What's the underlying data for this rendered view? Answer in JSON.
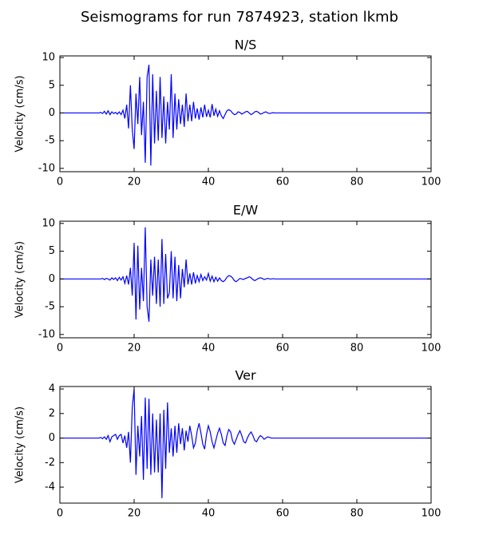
{
  "title": "Seismograms for run 7874923, station lkmb",
  "chart_data": [
    {
      "type": "line",
      "title": "N/S",
      "ylabel": "Velocity (cm/s)",
      "xlim": [
        0,
        100
      ],
      "xticks": [
        0,
        20,
        40,
        60,
        80,
        100
      ],
      "ylim": [
        -10.6,
        10.3
      ],
      "yticks": [
        -10,
        -5,
        0,
        5,
        10
      ],
      "x": [
        0,
        10,
        10.5,
        11,
        11.5,
        12,
        12.5,
        13,
        13.5,
        14,
        14.5,
        15,
        15.5,
        16,
        16.5,
        17,
        17.5,
        18,
        18.5,
        19,
        19.5,
        20,
        20.5,
        21,
        21.5,
        22,
        22.5,
        23,
        23.5,
        24,
        24.5,
        25,
        25.5,
        26,
        26.5,
        27,
        27.5,
        28,
        28.5,
        29,
        29.5,
        30,
        30.5,
        31,
        31.5,
        32,
        32.5,
        33,
        33.5,
        34,
        34.5,
        35,
        35.5,
        36,
        36.5,
        37,
        37.5,
        38,
        38.5,
        39,
        39.5,
        40,
        40.5,
        41,
        41.5,
        42,
        42.5,
        43,
        43.5,
        44,
        44.5,
        45,
        45.5,
        46,
        46.5,
        47,
        47.5,
        48,
        48.5,
        49,
        49.5,
        50,
        50.5,
        51,
        51.5,
        52,
        52.5,
        53,
        53.5,
        54,
        54.5,
        55,
        55.5,
        56,
        56.5,
        57,
        57.5,
        58,
        58.5,
        59,
        59.5,
        60,
        100
      ],
      "series": [
        {
          "color": "#0000ff",
          "values": [
            0,
            0,
            0,
            0.1,
            -0.1,
            0.3,
            -0.2,
            0.4,
            -0.3,
            0.2,
            -0.1,
            0.1,
            -0.2,
            0.2,
            -0.3,
            0.5,
            -1,
            1.5,
            -2.8,
            5,
            -3,
            -6.5,
            3.5,
            -2,
            6.5,
            -4,
            2,
            -9,
            6.5,
            8.7,
            -9.5,
            7,
            -5.5,
            4,
            -5,
            6.5,
            -4.5,
            3,
            -5.5,
            2,
            -3,
            7,
            -4.5,
            3.5,
            -3,
            2.5,
            -2,
            1.5,
            -2.5,
            3.5,
            -1.5,
            1.5,
            -1.5,
            2,
            -1,
            0.8,
            -1.2,
            1,
            -0.8,
            1.5,
            -0.7,
            0.5,
            -0.8,
            1.6,
            -0.5,
            0.7,
            -0.6,
            0.4,
            -0.5,
            -1,
            -0.3,
            0.4,
            0.6,
            0.4,
            0,
            -0.3,
            -0.2,
            0.2,
            0.1,
            -0.2,
            0,
            0.2,
            0.3,
            0,
            -0.3,
            -0.1,
            0.2,
            0.3,
            0.1,
            -0.2,
            -0.1,
            0.1,
            0.2,
            0,
            -0.1,
            0,
            0.05,
            0,
            0,
            0,
            0,
            0,
            0
          ]
        }
      ]
    },
    {
      "type": "line",
      "title": "E/W",
      "ylabel": "Velocity (cm/s)",
      "xlim": [
        0,
        100
      ],
      "xticks": [
        0,
        20,
        40,
        60,
        80,
        100
      ],
      "ylim": [
        -10.6,
        10.4
      ],
      "yticks": [
        -10,
        -5,
        0,
        5,
        10
      ],
      "x": [
        0,
        10,
        10.5,
        11,
        11.5,
        12,
        12.5,
        13,
        13.5,
        14,
        14.5,
        15,
        15.5,
        16,
        16.5,
        17,
        17.5,
        18,
        18.5,
        19,
        19.5,
        20,
        20.5,
        21,
        21.5,
        22,
        22.5,
        23,
        23.5,
        24,
        24.5,
        25,
        25.5,
        26,
        26.5,
        27,
        27.5,
        28,
        28.5,
        29,
        29.5,
        30,
        30.5,
        31,
        31.5,
        32,
        32.5,
        33,
        33.5,
        34,
        34.5,
        35,
        35.5,
        36,
        36.5,
        37,
        37.5,
        38,
        38.5,
        39,
        39.5,
        40,
        40.5,
        41,
        41.5,
        42,
        42.5,
        43,
        43.5,
        44,
        44.5,
        45,
        45.5,
        46,
        46.5,
        47,
        47.5,
        48,
        48.5,
        49,
        49.5,
        50,
        50.5,
        51,
        51.5,
        52,
        52.5,
        53,
        53.5,
        54,
        54.5,
        55,
        55.5,
        56,
        56.5,
        57,
        57.5,
        58,
        58.5,
        59,
        59.5,
        60,
        100
      ],
      "series": [
        {
          "color": "#0000ff",
          "values": [
            0,
            0,
            0,
            0,
            0.1,
            -0.1,
            0.1,
            0,
            -0.2,
            0.2,
            -0.1,
            0.2,
            -0.3,
            0.3,
            -0.2,
            0.4,
            -0.8,
            0.6,
            -1,
            2,
            -3,
            6.5,
            -7.3,
            6,
            -5.5,
            2,
            -4,
            9.3,
            -5,
            -7.7,
            3.5,
            -3,
            4,
            -4.5,
            3.5,
            -5,
            7.2,
            -4.5,
            4.5,
            -3.5,
            -2.5,
            5,
            -3.5,
            4,
            -4,
            2.5,
            -3.5,
            1.8,
            -1.5,
            3.5,
            -1,
            1,
            -1,
            1.2,
            -0.8,
            0.6,
            -0.5,
            0.8,
            -0.3,
            0.4,
            -0.2,
            1,
            -0.4,
            0.5,
            -0.5,
            0.3,
            -0.4,
            0.2,
            -0.3,
            -0.5,
            -0.2,
            0.3,
            0.6,
            0.5,
            0.2,
            -0.3,
            -0.5,
            -0.2,
            0.1,
            0,
            -0.1,
            0.1,
            0.2,
            0.4,
            0.2,
            -0.1,
            -0.3,
            -0.1,
            0.1,
            0.2,
            0.1,
            -0.1,
            0,
            0.1,
            0,
            0,
            0.05,
            0,
            0,
            0,
            0,
            0,
            0
          ]
        }
      ]
    },
    {
      "type": "line",
      "title": "Ver",
      "ylabel": "Velocity (cm/s)",
      "xlim": [
        0,
        100
      ],
      "xticks": [
        0,
        20,
        40,
        60,
        80,
        100
      ],
      "ylim": [
        -5.3,
        4.2
      ],
      "yticks": [
        -4,
        -2,
        0,
        2,
        4
      ],
      "x": [
        0,
        10,
        10.5,
        11,
        11.5,
        12,
        12.5,
        13,
        13.5,
        14,
        14.5,
        15,
        15.5,
        16,
        16.5,
        17,
        17.5,
        18,
        18.5,
        19,
        19.5,
        20,
        20.5,
        21,
        21.5,
        22,
        22.5,
        23,
        23.5,
        24,
        24.5,
        25,
        25.5,
        26,
        26.5,
        27,
        27.5,
        28,
        28.5,
        29,
        29.5,
        30,
        30.5,
        31,
        31.5,
        32,
        32.5,
        33,
        33.5,
        34,
        34.5,
        35,
        35.5,
        36,
        36.5,
        37,
        37.5,
        38,
        38.5,
        39,
        39.5,
        40,
        40.5,
        41,
        41.5,
        42,
        42.5,
        43,
        43.5,
        44,
        44.5,
        45,
        45.5,
        46,
        46.5,
        47,
        47.5,
        48,
        48.5,
        49,
        49.5,
        50,
        50.5,
        51,
        51.5,
        52,
        52.5,
        53,
        53.5,
        54,
        54.5,
        55,
        55.5,
        56,
        56.5,
        57,
        57.5,
        58,
        58.5,
        59,
        59.5,
        60,
        100
      ],
      "series": [
        {
          "color": "#0000ff",
          "values": [
            0,
            0,
            0,
            0.05,
            -0.05,
            0.1,
            -0.1,
            0.2,
            -0.3,
            0.1,
            0.2,
            0.3,
            -0.1,
            0.2,
            0.3,
            -0.4,
            0.2,
            -0.8,
            0.5,
            -2,
            2.5,
            4,
            -3,
            1,
            -1.5,
            1.8,
            -3.4,
            3.3,
            -2.5,
            3.2,
            -3,
            2,
            -2.8,
            1.5,
            -2.8,
            2,
            -4.9,
            2.3,
            -2.5,
            2.9,
            -1.2,
            0.8,
            -1.5,
            1,
            -1.2,
            1.2,
            -0.5,
            0.8,
            -1,
            0.6,
            -0.3,
            1,
            0.2,
            -0.8,
            -0.4,
            0.6,
            1.2,
            0.4,
            -0.5,
            -0.9,
            0.3,
            1,
            0.5,
            -0.3,
            -0.8,
            -0.2,
            0.4,
            0.8,
            0.3,
            -0.4,
            -0.6,
            0.2,
            0.7,
            0.5,
            -0.2,
            -0.5,
            -0.1,
            0.3,
            0.6,
            0.2,
            -0.3,
            -0.4,
            0,
            0.3,
            0.5,
            0.2,
            -0.2,
            -0.3,
            0,
            0.2,
            0.1,
            -0.1,
            0,
            0.1,
            0.05,
            0,
            0,
            0,
            0,
            0,
            0,
            0,
            0
          ]
        }
      ]
    }
  ]
}
